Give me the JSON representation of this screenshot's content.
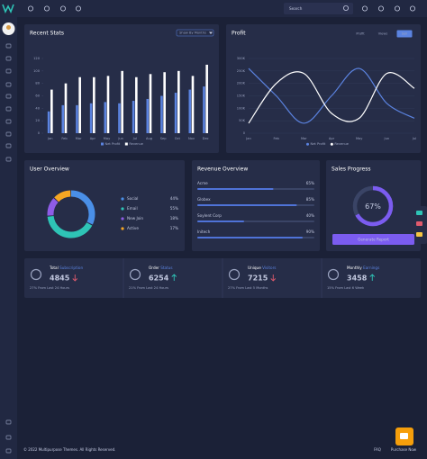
{
  "header": {
    "search_placeholder": "Search"
  },
  "chart_data": [
    {
      "type": "bar",
      "title": "Recent Stats",
      "filter": "Show By Months",
      "categories": [
        "Jan",
        "Feb",
        "Mar",
        "Apr",
        "May",
        "Jun",
        "Jul",
        "Aug",
        "Sep",
        "Oct",
        "Nov",
        "Dec"
      ],
      "series": [
        {
          "name": "Net Profit",
          "color": "#5b83e0",
          "values": [
            35,
            45,
            45,
            48,
            50,
            48,
            52,
            55,
            60,
            65,
            70,
            75
          ]
        },
        {
          "name": "Revenue",
          "color": "#ffffff",
          "values": [
            70,
            80,
            90,
            90,
            92,
            100,
            90,
            95,
            98,
            100,
            92,
            110
          ]
        }
      ],
      "ylim": [
        0,
        120
      ],
      "yticks": [
        0,
        20,
        40,
        60,
        80,
        100,
        120
      ],
      "grid": false
    },
    {
      "type": "line",
      "title": "Profit",
      "tabs": [
        "Profit",
        "Views",
        "Sell"
      ],
      "active_tab": 2,
      "categories": [
        "Jan",
        "Feb",
        "Mar",
        "Apr",
        "May",
        "Jun",
        "Jul"
      ],
      "series": [
        {
          "name": "Net Profit",
          "color": "#5b83e0",
          "values": [
            260000,
            150000,
            40000,
            150000,
            260000,
            120000,
            60000
          ]
        },
        {
          "name": "Revenue",
          "color": "#ffffff",
          "values": [
            40000,
            200000,
            240000,
            80000,
            60000,
            240000,
            180000
          ]
        }
      ],
      "ylim": [
        0,
        300000
      ],
      "yticks": [
        0,
        {
          "value": 50000,
          "label": "50K"
        },
        {
          "value": 100000,
          "label": "100K"
        },
        {
          "value": 150000,
          "label": "150K"
        },
        {
          "value": 200000,
          "label": "200K"
        },
        {
          "value": 250000,
          "label": "250K"
        },
        {
          "value": 300000,
          "label": "300K"
        }
      ],
      "grid": true
    },
    {
      "type": "donut",
      "title": "User Overview",
      "categories": [
        "Social",
        "Email",
        "New Join",
        "Active"
      ],
      "values": [
        44,
        55,
        18,
        17
      ],
      "value_labels": [
        "44%",
        "55%",
        "18%",
        "17%"
      ],
      "colors": [
        "#4a8fe7",
        "#2ec4b6",
        "#8e5ce6",
        "#f5a623"
      ]
    },
    {
      "type": "progress",
      "title": "Revenue Overview",
      "categories": [
        "Acme",
        "Globex",
        "Soylent Corp",
        "Initech"
      ],
      "values": [
        65,
        85,
        40,
        90
      ],
      "value_labels": [
        "65%",
        "85%",
        "40%",
        "90%"
      ],
      "xlim": [
        0,
        100
      ],
      "color": "#4f73d8"
    },
    {
      "type": "gauge",
      "title": "Sales Progress",
      "values": [
        67
      ],
      "value_labels": [
        "67%"
      ],
      "ylim": [
        0,
        100
      ],
      "color": "#7b5cf0",
      "button": "Generate Report"
    }
  ],
  "stats": [
    {
      "title_lead": "Total",
      "title_accent": "Subscription",
      "value": 4845,
      "trend": "down",
      "note": "27% From Last 24 Hours"
    },
    {
      "title_lead": "Order",
      "title_accent": "Status",
      "value": 6254,
      "trend": "up",
      "note": "21% From Last 24 Hours"
    },
    {
      "title_lead": "Unique",
      "title_accent": "Visitors",
      "value": 7215,
      "trend": "down",
      "note": "27% From Last 5 Months"
    },
    {
      "title_lead": "Monthly",
      "title_accent": "Earnings",
      "value": 3458,
      "trend": "up",
      "note": "15% From Last 6 Week"
    }
  ],
  "footer": {
    "copyright": "© 2022 Multipurpose Themes. All Rights Reserved.",
    "links": [
      "FAQ",
      "Purchase Now"
    ]
  }
}
